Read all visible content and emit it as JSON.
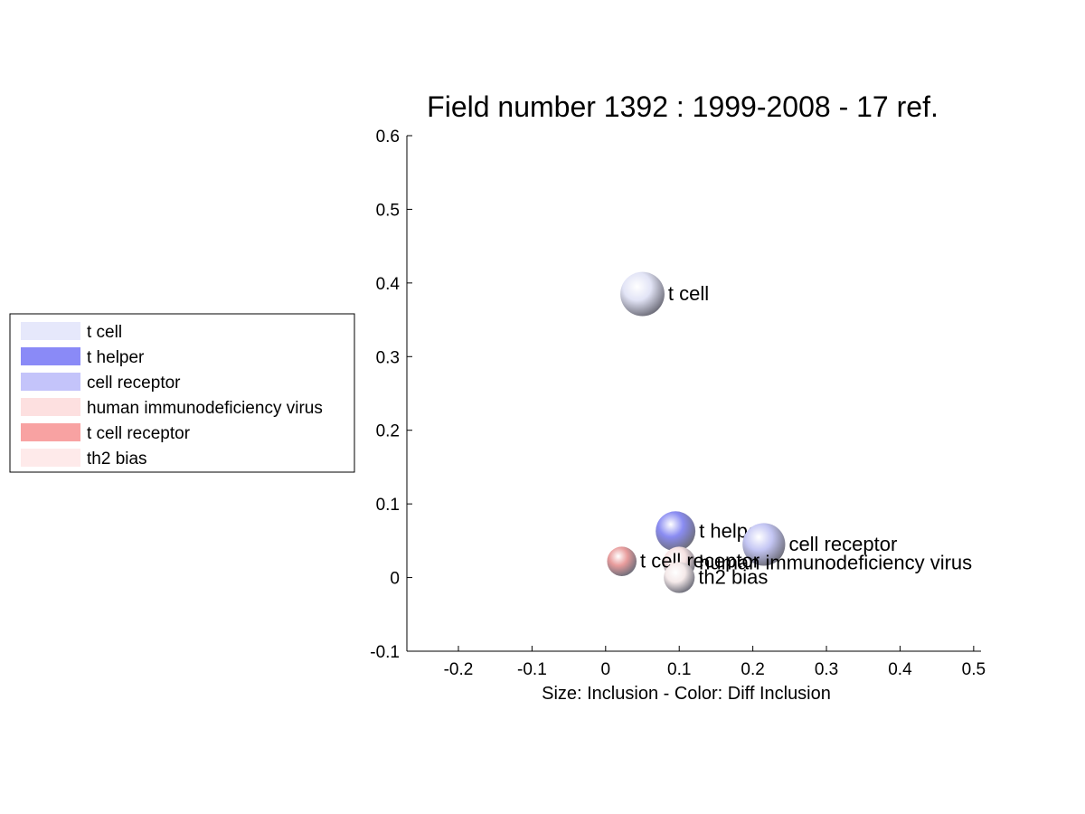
{
  "chart_data": {
    "type": "scatter",
    "title": "Field number 1392 : 1999-2008  - 17 ref.",
    "xlabel": "Size: Inclusion - Color: Diff Inclusion",
    "ylabel": "",
    "xlim": [
      -0.27,
      0.51
    ],
    "ylim": [
      -0.1,
      0.6
    ],
    "xticks": [
      -0.2,
      -0.1,
      0,
      0.1,
      0.2,
      0.3,
      0.4,
      0.5
    ],
    "xtick_labels": [
      "-0.2",
      "-0.1",
      "0",
      "0.1",
      "0.2",
      "0.3",
      "0.4",
      "0.5"
    ],
    "yticks": [
      -0.1,
      0,
      0.1,
      0.2,
      0.3,
      0.4,
      0.5,
      0.6
    ],
    "ytick_labels": [
      "-0.1",
      "0",
      "0.1",
      "0.2",
      "0.3",
      "0.4",
      "0.5",
      "0.6"
    ],
    "grid": false,
    "legend_position": "left",
    "points": [
      {
        "label": "t cell",
        "x": 0.05,
        "y": 0.385,
        "size": 0.03,
        "color": "#e2e4f6"
      },
      {
        "label": "t helper",
        "x": 0.095,
        "y": 0.063,
        "size": 0.027,
        "color": "#8a8cf2"
      },
      {
        "label": "cell receptor",
        "x": 0.215,
        "y": 0.045,
        "size": 0.029,
        "color": "#c4c6f4"
      },
      {
        "label": "human immunodeficiency virus",
        "x": 0.1,
        "y": 0.02,
        "size": 0.022,
        "color": "#f6e2e2"
      },
      {
        "label": "t cell receptor",
        "x": 0.022,
        "y": 0.022,
        "size": 0.02,
        "color": "#e89c9c"
      },
      {
        "label": "th2 bias",
        "x": 0.1,
        "y": 0.0,
        "size": 0.021,
        "color": "#f5eaea"
      }
    ],
    "legend": [
      {
        "label": "t cell",
        "color": "#e6e8fb"
      },
      {
        "label": "t helper",
        "color": "#8a8af7"
      },
      {
        "label": "cell receptor",
        "color": "#c4c4fa"
      },
      {
        "label": "human immunodeficiency virus",
        "color": "#fde0e0"
      },
      {
        "label": "t cell receptor",
        "color": "#f8a2a2"
      },
      {
        "label": "th2 bias",
        "color": "#feeaea"
      }
    ]
  }
}
